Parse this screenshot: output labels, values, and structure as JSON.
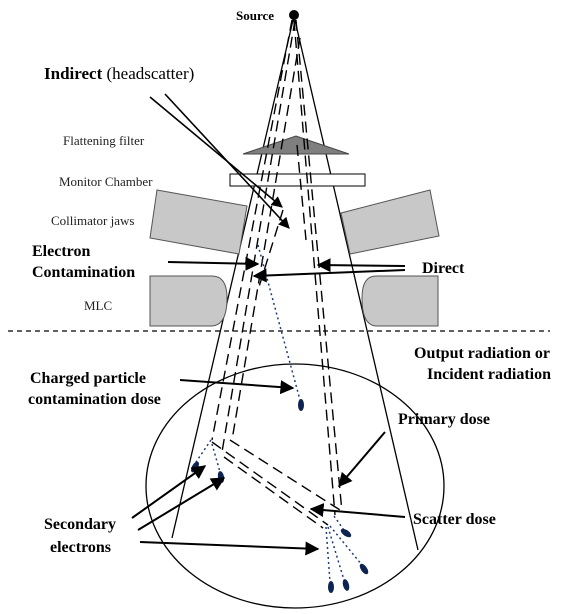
{
  "labels": {
    "source": "Source",
    "indirect_bold": "Indirect",
    "indirect_rest": " (headscatter)",
    "flattening_filter": "Flattening filter",
    "monitor_chamber": "Monitor Chamber",
    "collimator_jaws": "Collimator jaws",
    "electron_line1": "Electron",
    "electron_line2": "Contamination",
    "direct": "Direct",
    "mlc": "MLC",
    "output_line1": "Output radiation or",
    "output_line2": "Incident radiation",
    "charged_line1": "Charged particle",
    "charged_line2": "contamination dose",
    "primary_dose": "Primary dose",
    "scatter_dose": "Scatter dose",
    "secondary_line1": "Secondary",
    "secondary_line2": "electrons"
  },
  "colors": {
    "line": "#000000",
    "component_fill": "#c8c8c8",
    "filter_fill": "#7f7f7f",
    "electron_dots": "#1f3b7a",
    "electron_tip": "#0d2350"
  }
}
